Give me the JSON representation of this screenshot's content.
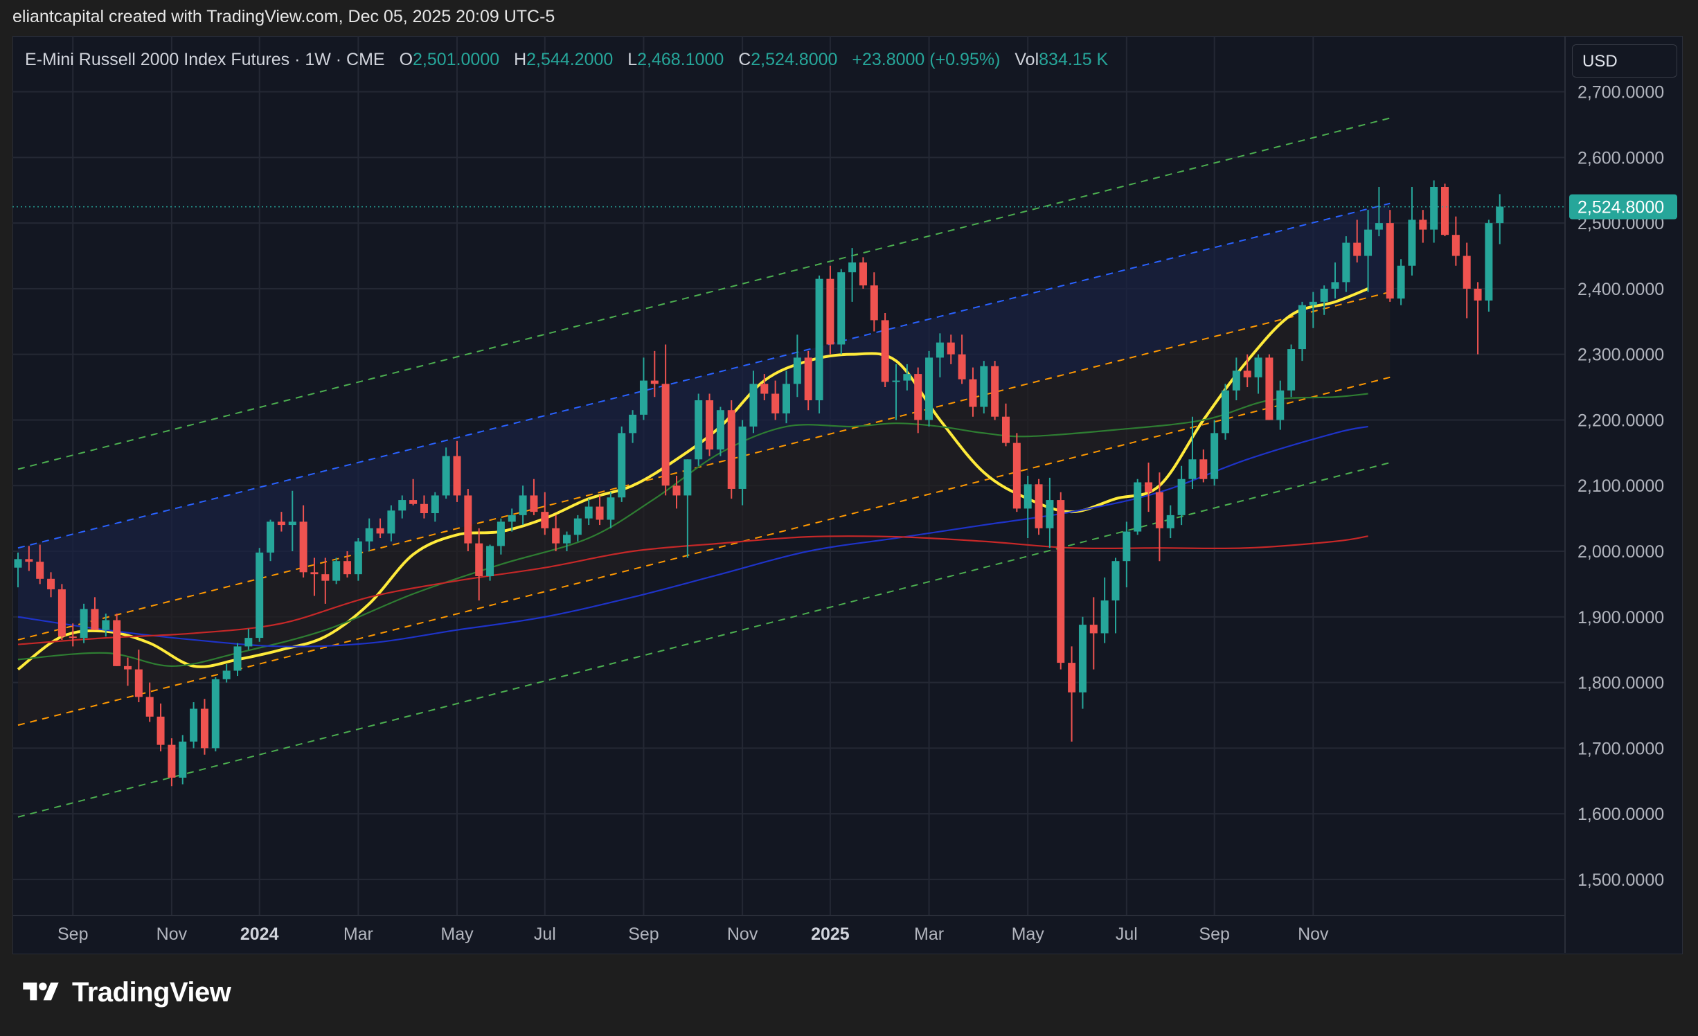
{
  "header": {
    "attribution": "eliantcapital created with TradingView.com, Dec 05, 2025 20:09 UTC-5"
  },
  "legend": {
    "symbol": "E-Mini Russell 2000 Index Futures · 1W · CME",
    "o_label": "O",
    "o_value": "2,501.0000",
    "h_label": "H",
    "h_value": "2,544.2000",
    "l_label": "L",
    "l_value": "2,468.1000",
    "c_label": "C",
    "c_value": "2,524.8000",
    "change": "+23.8000 (+0.95%)",
    "vol_label": "Vol",
    "vol_value": "834.15 K"
  },
  "currency": "USD",
  "brand": {
    "name": "TradingView"
  },
  "colors": {
    "background": "#131722",
    "up": "#26a69a",
    "down": "#ef5350",
    "grid": "#242834",
    "ma_yellow": "#ffeb3b",
    "ma_green": "#2e7d32",
    "ma_blue": "#1e33c8",
    "ma_red": "#c62828",
    "channel_green": "#4caf50",
    "channel_blue": "#2962ff",
    "channel_orange": "#ff9800",
    "price_tag": "#26a69a"
  },
  "chart_data": {
    "type": "candlestick",
    "title": "E-Mini Russell 2000 Index Futures",
    "interval": "1W",
    "exchange": "CME",
    "y_axis": {
      "range": [
        1445,
        2785
      ],
      "ticks": [
        1500,
        1600,
        1700,
        1800,
        1900,
        2000,
        2100,
        2200,
        2300,
        2400,
        2500,
        2600,
        2700
      ],
      "tick_labels": [
        "1,500.0000",
        "1,600.0000",
        "1,700.0000",
        "1,800.0000",
        "1,900.0000",
        "2,000.0000",
        "2,100.0000",
        "2,200.0000",
        "2,300.0000",
        "2,400.0000",
        "2,500.0000",
        "2,600.0000",
        "2,700.0000"
      ]
    },
    "x_axis": {
      "tick_labels": [
        {
          "label": "Sep",
          "index": 5,
          "bold": false
        },
        {
          "label": "Nov",
          "index": 14,
          "bold": false
        },
        {
          "label": "2024",
          "index": 22,
          "bold": true
        },
        {
          "label": "Mar",
          "index": 31,
          "bold": false
        },
        {
          "label": "May",
          "index": 40,
          "bold": false
        },
        {
          "label": "Jul",
          "index": 48,
          "bold": false
        },
        {
          "label": "Sep",
          "index": 57,
          "bold": false
        },
        {
          "label": "Nov",
          "index": 66,
          "bold": false
        },
        {
          "label": "2025",
          "index": 74,
          "bold": true
        },
        {
          "label": "Mar",
          "index": 83,
          "bold": false
        },
        {
          "label": "May",
          "index": 92,
          "bold": false
        },
        {
          "label": "Jul",
          "index": 101,
          "bold": false
        },
        {
          "label": "Sep",
          "index": 109,
          "bold": false
        },
        {
          "label": "Nov",
          "index": 118,
          "bold": false
        }
      ]
    },
    "last_price": 2524.8,
    "last_price_label": "2,524.8000",
    "candles": [
      [
        1975,
        1998,
        1945,
        1988
      ],
      [
        1988,
        2008,
        1970,
        1984
      ],
      [
        1984,
        2010,
        1950,
        1958
      ],
      [
        1958,
        1968,
        1930,
        1942
      ],
      [
        1942,
        1950,
        1865,
        1870
      ],
      [
        1870,
        1890,
        1855,
        1868
      ],
      [
        1868,
        1920,
        1860,
        1912
      ],
      [
        1912,
        1930,
        1880,
        1880
      ],
      [
        1880,
        1905,
        1870,
        1895
      ],
      [
        1895,
        1905,
        1825,
        1825
      ],
      [
        1825,
        1838,
        1795,
        1820
      ],
      [
        1820,
        1850,
        1770,
        1778
      ],
      [
        1778,
        1800,
        1740,
        1748
      ],
      [
        1748,
        1768,
        1695,
        1705
      ],
      [
        1705,
        1715,
        1642,
        1655
      ],
      [
        1655,
        1720,
        1645,
        1710
      ],
      [
        1710,
        1770,
        1700,
        1760
      ],
      [
        1760,
        1775,
        1690,
        1700
      ],
      [
        1700,
        1808,
        1695,
        1805
      ],
      [
        1805,
        1828,
        1800,
        1818
      ],
      [
        1818,
        1860,
        1810,
        1855
      ],
      [
        1855,
        1882,
        1850,
        1868
      ],
      [
        1868,
        2005,
        1862,
        1998
      ],
      [
        1998,
        2048,
        1985,
        2045
      ],
      [
        2045,
        2060,
        2030,
        2040
      ],
      [
        2040,
        2092,
        2000,
        2045
      ],
      [
        2045,
        2070,
        1960,
        1968
      ],
      [
        1968,
        1990,
        1932,
        1965
      ],
      [
        1965,
        1990,
        1920,
        1955
      ],
      [
        1955,
        1990,
        1950,
        1985
      ],
      [
        1985,
        2000,
        1960,
        1965
      ],
      [
        1965,
        2020,
        1955,
        2015
      ],
      [
        2015,
        2050,
        2000,
        2035
      ],
      [
        2035,
        2050,
        2020,
        2027
      ],
      [
        2027,
        2070,
        2015,
        2062
      ],
      [
        2062,
        2085,
        2050,
        2078
      ],
      [
        2078,
        2110,
        2070,
        2072
      ],
      [
        2072,
        2085,
        2050,
        2058
      ],
      [
        2058,
        2090,
        2045,
        2085
      ],
      [
        2085,
        2158,
        2080,
        2145
      ],
      [
        2145,
        2168,
        2075,
        2085
      ],
      [
        2085,
        2095,
        2000,
        2012
      ],
      [
        2012,
        2035,
        1925,
        1962
      ],
      [
        1962,
        2010,
        1955,
        2008
      ],
      [
        2008,
        2050,
        1995,
        2045
      ],
      [
        2045,
        2065,
        2030,
        2055
      ],
      [
        2055,
        2100,
        2040,
        2085
      ],
      [
        2085,
        2110,
        2055,
        2060
      ],
      [
        2060,
        2090,
        2025,
        2035
      ],
      [
        2035,
        2055,
        2000,
        2012
      ],
      [
        2012,
        2030,
        2000,
        2025
      ],
      [
        2025,
        2055,
        2015,
        2050
      ],
      [
        2050,
        2080,
        2040,
        2068
      ],
      [
        2068,
        2085,
        2040,
        2048
      ],
      [
        2048,
        2090,
        2035,
        2082
      ],
      [
        2082,
        2190,
        2075,
        2180
      ],
      [
        2180,
        2215,
        2165,
        2208
      ],
      [
        2208,
        2295,
        2200,
        2260
      ],
      [
        2260,
        2305,
        2235,
        2255
      ],
      [
        2255,
        2315,
        2085,
        2100
      ],
      [
        2100,
        2115,
        2065,
        2085
      ],
      [
        2085,
        2140,
        1990,
        2140
      ],
      [
        2140,
        2240,
        2130,
        2230
      ],
      [
        2230,
        2240,
        2145,
        2155
      ],
      [
        2155,
        2220,
        2145,
        2215
      ],
      [
        2215,
        2230,
        2080,
        2095
      ],
      [
        2095,
        2200,
        2070,
        2190
      ],
      [
        2190,
        2275,
        2180,
        2255
      ],
      [
        2255,
        2270,
        2230,
        2240
      ],
      [
        2240,
        2260,
        2200,
        2210
      ],
      [
        2210,
        2275,
        2195,
        2255
      ],
      [
        2255,
        2330,
        2235,
        2295
      ],
      [
        2295,
        2305,
        2215,
        2230
      ],
      [
        2230,
        2420,
        2210,
        2415
      ],
      [
        2415,
        2435,
        2300,
        2315
      ],
      [
        2315,
        2430,
        2300,
        2425
      ],
      [
        2425,
        2462,
        2380,
        2440
      ],
      [
        2440,
        2448,
        2400,
        2405
      ],
      [
        2405,
        2425,
        2335,
        2352
      ],
      [
        2352,
        2363,
        2250,
        2258
      ],
      [
        2258,
        2285,
        2200,
        2260
      ],
      [
        2260,
        2285,
        2245,
        2270
      ],
      [
        2270,
        2280,
        2180,
        2200
      ],
      [
        2200,
        2305,
        2190,
        2295
      ],
      [
        2295,
        2332,
        2265,
        2318
      ],
      [
        2318,
        2330,
        2285,
        2300
      ],
      [
        2300,
        2330,
        2255,
        2262
      ],
      [
        2262,
        2280,
        2205,
        2220
      ],
      [
        2220,
        2290,
        2210,
        2282
      ],
      [
        2282,
        2290,
        2200,
        2205
      ],
      [
        2205,
        2225,
        2160,
        2165
      ],
      [
        2165,
        2180,
        2060,
        2065
      ],
      [
        2065,
        2115,
        2020,
        2102
      ],
      [
        2102,
        2110,
        2025,
        2035
      ],
      [
        2035,
        2112,
        2005,
        2078
      ],
      [
        2078,
        2090,
        1820,
        1830
      ],
      [
        1830,
        1855,
        1710,
        1785
      ],
      [
        1785,
        1900,
        1760,
        1888
      ],
      [
        1888,
        1930,
        1820,
        1875
      ],
      [
        1875,
        1960,
        1860,
        1925
      ],
      [
        1925,
        1990,
        1875,
        1985
      ],
      [
        1985,
        2045,
        1945,
        2030
      ],
      [
        2030,
        2110,
        2025,
        2105
      ],
      [
        2105,
        2135,
        2060,
        2090
      ],
      [
        2090,
        2120,
        1985,
        2035
      ],
      [
        2035,
        2070,
        2020,
        2055
      ],
      [
        2055,
        2130,
        2040,
        2110
      ],
      [
        2110,
        2205,
        2095,
        2140
      ],
      [
        2140,
        2155,
        2105,
        2110
      ],
      [
        2110,
        2200,
        2100,
        2180
      ],
      [
        2180,
        2255,
        2170,
        2245
      ],
      [
        2245,
        2295,
        2230,
        2275
      ],
      [
        2275,
        2300,
        2250,
        2265
      ],
      [
        2265,
        2300,
        2240,
        2295
      ],
      [
        2295,
        2300,
        2200,
        2200
      ],
      [
        2200,
        2260,
        2185,
        2245
      ],
      [
        2245,
        2315,
        2235,
        2308
      ],
      [
        2308,
        2380,
        2290,
        2375
      ],
      [
        2375,
        2395,
        2340,
        2380
      ],
      [
        2380,
        2405,
        2360,
        2400
      ],
      [
        2400,
        2440,
        2385,
        2410
      ],
      [
        2410,
        2480,
        2395,
        2470
      ],
      [
        2470,
        2505,
        2440,
        2450
      ],
      [
        2450,
        2520,
        2395,
        2490
      ],
      [
        2490,
        2555,
        2480,
        2500
      ],
      [
        2500,
        2520,
        2380,
        2385
      ],
      [
        2385,
        2445,
        2375,
        2435
      ],
      [
        2435,
        2555,
        2420,
        2505
      ],
      [
        2505,
        2520,
        2470,
        2490
      ],
      [
        2490,
        2565,
        2470,
        2555
      ],
      [
        2555,
        2560,
        2480,
        2482
      ],
      [
        2482,
        2510,
        2435,
        2450
      ],
      [
        2450,
        2470,
        2355,
        2400
      ],
      [
        2400,
        2410,
        2300,
        2382
      ],
      [
        2382,
        2505,
        2365,
        2500
      ],
      [
        2500,
        2544,
        2468,
        2525
      ]
    ],
    "moving_averages": [
      {
        "color": "yellow",
        "values": [
          [
            0,
            1820
          ],
          [
            4,
            1870
          ],
          [
            8,
            1878
          ],
          [
            12,
            1860
          ],
          [
            16,
            1825
          ],
          [
            20,
            1835
          ],
          [
            24,
            1850
          ],
          [
            28,
            1870
          ],
          [
            32,
            1920
          ],
          [
            36,
            1995
          ],
          [
            40,
            2025
          ],
          [
            44,
            2030
          ],
          [
            48,
            2050
          ],
          [
            52,
            2080
          ],
          [
            56,
            2100
          ],
          [
            60,
            2140
          ],
          [
            64,
            2190
          ],
          [
            68,
            2260
          ],
          [
            72,
            2290
          ],
          [
            76,
            2300
          ],
          [
            80,
            2290
          ],
          [
            84,
            2200
          ],
          [
            88,
            2120
          ],
          [
            92,
            2080
          ],
          [
            96,
            2060
          ],
          [
            100,
            2080
          ],
          [
            104,
            2100
          ],
          [
            108,
            2200
          ],
          [
            112,
            2290
          ],
          [
            116,
            2360
          ],
          [
            120,
            2380
          ],
          [
            123,
            2400
          ]
        ]
      },
      {
        "color": "green",
        "values": [
          [
            0,
            1835
          ],
          [
            8,
            1845
          ],
          [
            14,
            1825
          ],
          [
            20,
            1845
          ],
          [
            28,
            1880
          ],
          [
            36,
            1935
          ],
          [
            44,
            1980
          ],
          [
            52,
            2020
          ],
          [
            58,
            2080
          ],
          [
            64,
            2150
          ],
          [
            70,
            2190
          ],
          [
            76,
            2190
          ],
          [
            80,
            2195
          ],
          [
            84,
            2190
          ],
          [
            88,
            2180
          ],
          [
            92,
            2175
          ],
          [
            100,
            2185
          ],
          [
            108,
            2200
          ],
          [
            114,
            2230
          ],
          [
            120,
            2235
          ],
          [
            123,
            2240
          ]
        ]
      },
      {
        "color": "blue",
        "values": [
          [
            0,
            1900
          ],
          [
            8,
            1880
          ],
          [
            16,
            1865
          ],
          [
            24,
            1855
          ],
          [
            32,
            1860
          ],
          [
            40,
            1880
          ],
          [
            48,
            1900
          ],
          [
            56,
            1930
          ],
          [
            64,
            1965
          ],
          [
            72,
            2000
          ],
          [
            80,
            2020
          ],
          [
            88,
            2040
          ],
          [
            96,
            2060
          ],
          [
            104,
            2090
          ],
          [
            112,
            2140
          ],
          [
            120,
            2180
          ],
          [
            123,
            2190
          ]
        ]
      },
      {
        "color": "red",
        "values": [
          [
            0,
            1858
          ],
          [
            8,
            1868
          ],
          [
            16,
            1875
          ],
          [
            24,
            1890
          ],
          [
            32,
            1930
          ],
          [
            40,
            1955
          ],
          [
            48,
            1975
          ],
          [
            56,
            2000
          ],
          [
            64,
            2012
          ],
          [
            72,
            2022
          ],
          [
            80,
            2022
          ],
          [
            88,
            2015
          ],
          [
            96,
            2005
          ],
          [
            104,
            2005
          ],
          [
            112,
            2005
          ],
          [
            120,
            2015
          ],
          [
            123,
            2023
          ]
        ]
      }
    ],
    "channel_lines": [
      {
        "color": "green",
        "dashed": true,
        "from": [
          0,
          2125
        ],
        "to": [
          125,
          2660
        ]
      },
      {
        "color": "blue",
        "dashed": true,
        "from": [
          0,
          2005
        ],
        "to": [
          125,
          2530
        ]
      },
      {
        "color": "orange",
        "dashed": true,
        "from": [
          0,
          1865
        ],
        "to": [
          125,
          2395
        ]
      },
      {
        "color": "orange",
        "dashed": true,
        "from": [
          0,
          1735
        ],
        "to": [
          125,
          2265
        ]
      },
      {
        "color": "green",
        "dashed": true,
        "from": [
          0,
          1595
        ],
        "to": [
          125,
          2135
        ]
      }
    ]
  }
}
